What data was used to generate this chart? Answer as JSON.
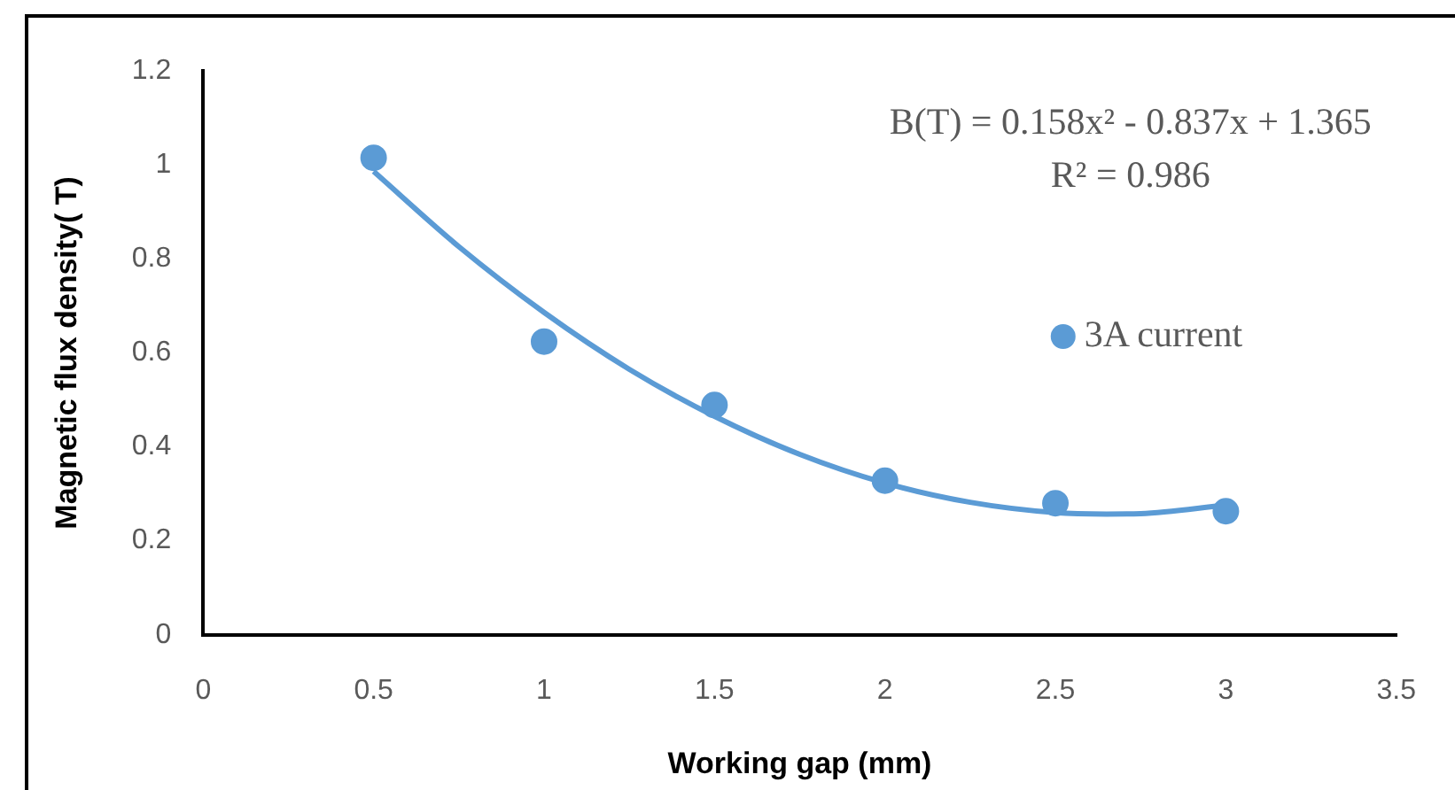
{
  "chart_data": {
    "type": "scatter",
    "xlabel": "Working gap (mm)",
    "ylabel": "Magnetic flux density( T)",
    "series": [
      {
        "name": "3A current",
        "color": "#5b9bd5",
        "x": [
          0.5,
          1,
          1.5,
          2,
          2.5,
          3
        ],
        "values": [
          1.015,
          0.624,
          0.489,
          0.328,
          0.28,
          0.263
        ]
      },
      {
        "type": "line",
        "color": "#5b9bd5",
        "x": [
          0.5,
          0.75,
          1,
          1.25,
          1.5,
          1.75,
          2,
          2.25,
          2.5,
          2.65,
          2.75,
          3
        ],
        "values": [
          0.986,
          0.826,
          0.686,
          0.565,
          0.465,
          0.384,
          0.323,
          0.282,
          0.26,
          0.257,
          0.258,
          0.276
        ],
        "marker": "none"
      }
    ],
    "xlim": [
      0,
      3.5
    ],
    "xticks": [
      0,
      0.5,
      1,
      1.5,
      2,
      2.5,
      3,
      3.5
    ],
    "ylim": [
      0,
      1.2
    ],
    "yticks": [
      0,
      0.2,
      0.4,
      0.6,
      0.8,
      1,
      1.2
    ],
    "grid": false,
    "legend": "right",
    "marker": "circle",
    "annotations": [
      "B(T) = 0.158x² - 0.837x + 1.365",
      "R² = 0.986"
    ]
  }
}
